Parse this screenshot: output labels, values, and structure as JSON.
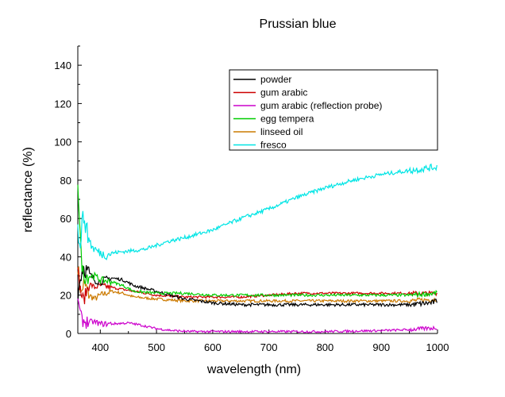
{
  "chart_data": {
    "type": "line",
    "title": "Prussian blue",
    "xlabel": "wavelength (nm)",
    "ylabel": "reflectance (%)",
    "xlim": [
      360,
      1000
    ],
    "ylim": [
      0,
      150
    ],
    "xticks": [
      400,
      500,
      600,
      700,
      800,
      900,
      1000
    ],
    "yticks": [
      0,
      20,
      40,
      60,
      80,
      100,
      120,
      140
    ],
    "legend_position": "top-right",
    "series": [
      {
        "name": "powder",
        "color": "#000000",
        "noise": 0.8,
        "points": [
          [
            360,
            20
          ],
          [
            365,
            30
          ],
          [
            370,
            35
          ],
          [
            380,
            31
          ],
          [
            390,
            28
          ],
          [
            400,
            27
          ],
          [
            410,
            28
          ],
          [
            420,
            29
          ],
          [
            440,
            28
          ],
          [
            460,
            25
          ],
          [
            500,
            22
          ],
          [
            550,
            18
          ],
          [
            600,
            16
          ],
          [
            650,
            15
          ],
          [
            700,
            15
          ],
          [
            750,
            15
          ],
          [
            800,
            15
          ],
          [
            850,
            15
          ],
          [
            900,
            15
          ],
          [
            950,
            15
          ],
          [
            990,
            16
          ],
          [
            1000,
            17
          ]
        ]
      },
      {
        "name": "gum arabic",
        "color": "#cc0000",
        "noise": 0.6,
        "points": [
          [
            360,
            32
          ],
          [
            365,
            22
          ],
          [
            370,
            17
          ],
          [
            380,
            26
          ],
          [
            390,
            24
          ],
          [
            400,
            25
          ],
          [
            420,
            24
          ],
          [
            440,
            23
          ],
          [
            460,
            22
          ],
          [
            500,
            20
          ],
          [
            550,
            19
          ],
          [
            600,
            19
          ],
          [
            650,
            19
          ],
          [
            700,
            20
          ],
          [
            750,
            21
          ],
          [
            800,
            21
          ],
          [
            850,
            21
          ],
          [
            900,
            21
          ],
          [
            950,
            21
          ],
          [
            1000,
            21
          ]
        ]
      },
      {
        "name": "gum arabic (reflection probe)",
        "color": "#cc00cc",
        "noise": 0.6,
        "points": [
          [
            360,
            20
          ],
          [
            363,
            12
          ],
          [
            367,
            7
          ],
          [
            375,
            6
          ],
          [
            390,
            6
          ],
          [
            400,
            5
          ],
          [
            420,
            5
          ],
          [
            450,
            5.5
          ],
          [
            470,
            4.5
          ],
          [
            500,
            2.5
          ],
          [
            530,
            1.5
          ],
          [
            560,
            1
          ],
          [
            600,
            1
          ],
          [
            700,
            1
          ],
          [
            800,
            1
          ],
          [
            900,
            1.5
          ],
          [
            950,
            2
          ],
          [
            1000,
            3
          ]
        ]
      },
      {
        "name": "egg tempera",
        "color": "#00cc00",
        "noise": 0.7,
        "points": [
          [
            360,
            80
          ],
          [
            363,
            60
          ],
          [
            366,
            40
          ],
          [
            370,
            30
          ],
          [
            380,
            30
          ],
          [
            390,
            30
          ],
          [
            400,
            28
          ],
          [
            420,
            27
          ],
          [
            440,
            25
          ],
          [
            460,
            22
          ],
          [
            500,
            21
          ],
          [
            550,
            21
          ],
          [
            600,
            20
          ],
          [
            650,
            20
          ],
          [
            700,
            20
          ],
          [
            750,
            20
          ],
          [
            800,
            20
          ],
          [
            850,
            20
          ],
          [
            900,
            20
          ],
          [
            950,
            20
          ],
          [
            1000,
            21
          ]
        ]
      },
      {
        "name": "linseed oil",
        "color": "#cc7a00",
        "noise": 0.7,
        "points": [
          [
            360,
            35
          ],
          [
            363,
            28
          ],
          [
            366,
            20
          ],
          [
            370,
            26
          ],
          [
            375,
            24
          ],
          [
            380,
            20
          ],
          [
            390,
            18
          ],
          [
            400,
            20
          ],
          [
            420,
            22
          ],
          [
            440,
            21
          ],
          [
            460,
            19
          ],
          [
            500,
            18
          ],
          [
            550,
            17
          ],
          [
            600,
            17
          ],
          [
            650,
            17
          ],
          [
            700,
            17
          ],
          [
            750,
            17
          ],
          [
            800,
            17
          ],
          [
            850,
            17
          ],
          [
            900,
            17
          ],
          [
            950,
            17
          ],
          [
            1000,
            18
          ]
        ]
      },
      {
        "name": "fresco",
        "color": "#00e5e5",
        "noise": 1.0,
        "points": [
          [
            360,
            60
          ],
          [
            362,
            42
          ],
          [
            365,
            50
          ],
          [
            368,
            58
          ],
          [
            372,
            62
          ],
          [
            376,
            52
          ],
          [
            380,
            50
          ],
          [
            385,
            45
          ],
          [
            390,
            44
          ],
          [
            400,
            42
          ],
          [
            410,
            41
          ],
          [
            420,
            42
          ],
          [
            450,
            43
          ],
          [
            480,
            44
          ],
          [
            500,
            46
          ],
          [
            520,
            48
          ],
          [
            550,
            50
          ],
          [
            600,
            54
          ],
          [
            650,
            60
          ],
          [
            700,
            65
          ],
          [
            750,
            71
          ],
          [
            800,
            76
          ],
          [
            850,
            80
          ],
          [
            900,
            83
          ],
          [
            950,
            85
          ],
          [
            1000,
            87
          ]
        ]
      }
    ]
  }
}
